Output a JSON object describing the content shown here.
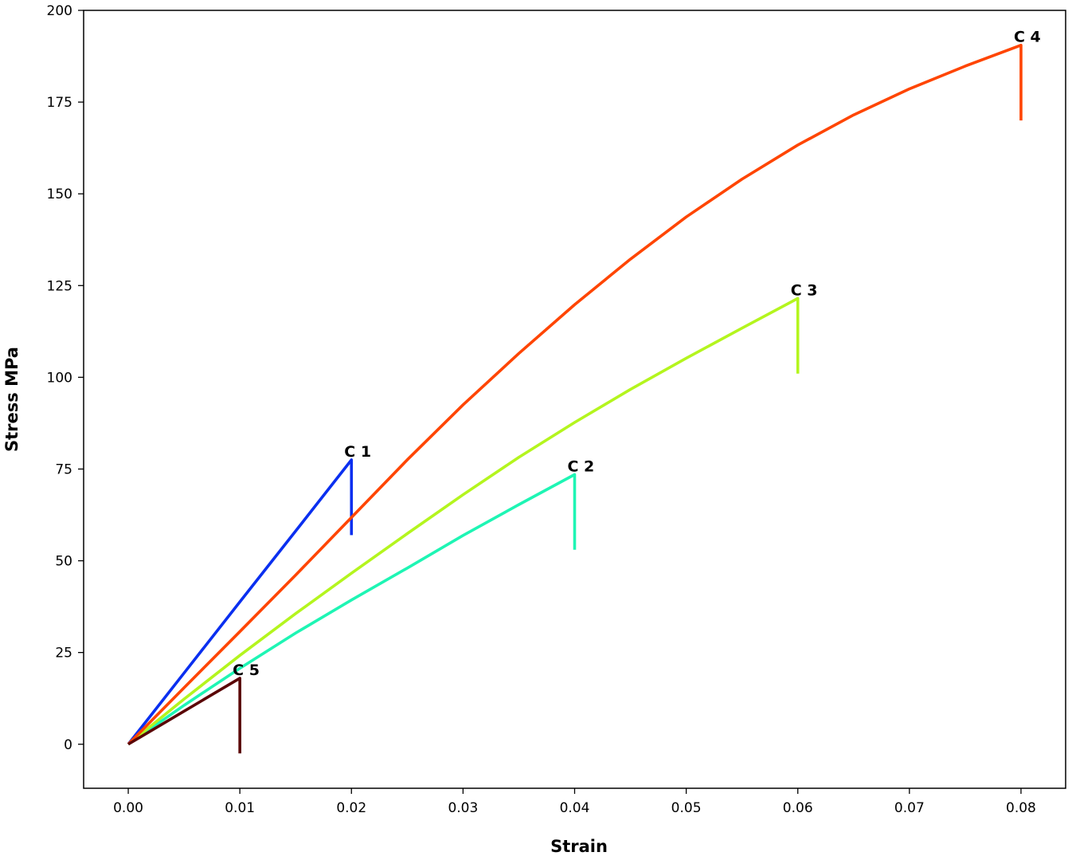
{
  "chart_data": {
    "type": "line",
    "title": "",
    "xlabel": "Strain",
    "ylabel": "Stress MPa",
    "xlim": [
      -0.004,
      0.084
    ],
    "ylim": [
      -12,
      200
    ],
    "xticks": [
      0.0,
      0.01,
      0.02,
      0.03,
      0.04,
      0.05,
      0.06,
      0.07,
      0.08
    ],
    "xtick_labels": [
      "0.00",
      "0.01",
      "0.02",
      "0.03",
      "0.04",
      "0.05",
      "0.06",
      "0.07",
      "0.08"
    ],
    "yticks": [
      0,
      25,
      50,
      75,
      100,
      125,
      150,
      175,
      200
    ],
    "ytick_labels": [
      "0",
      "25",
      "50",
      "75",
      "100",
      "125",
      "150",
      "175",
      "200"
    ],
    "grid": false,
    "legend": "none",
    "series": [
      {
        "label": "C 1",
        "color": "#0a2ff0",
        "points": [
          [
            0.0,
            0
          ],
          [
            0.005,
            19.4
          ],
          [
            0.01,
            38.8
          ],
          [
            0.015,
            58.1
          ],
          [
            0.02,
            77.5
          ],
          [
            0.02,
            57
          ]
        ]
      },
      {
        "label": "C 2",
        "color": "#1ef5b4",
        "points": [
          [
            0.0,
            0
          ],
          [
            0.005,
            10.6
          ],
          [
            0.01,
            20.7
          ],
          [
            0.015,
            30.3
          ],
          [
            0.02,
            39.3
          ],
          [
            0.025,
            48.0
          ],
          [
            0.03,
            56.9
          ],
          [
            0.035,
            65.3
          ],
          [
            0.04,
            73.5
          ],
          [
            0.04,
            53
          ]
        ]
      },
      {
        "label": "C 3",
        "color": "#b4f51e",
        "points": [
          [
            0.0,
            0
          ],
          [
            0.005,
            12.3
          ],
          [
            0.01,
            24.2
          ],
          [
            0.015,
            35.6
          ],
          [
            0.02,
            46.6
          ],
          [
            0.025,
            57.4
          ],
          [
            0.03,
            68.0
          ],
          [
            0.035,
            78.2
          ],
          [
            0.04,
            87.7
          ],
          [
            0.045,
            96.7
          ],
          [
            0.05,
            105.2
          ],
          [
            0.055,
            113.4
          ],
          [
            0.06,
            121.5
          ],
          [
            0.06,
            101
          ]
        ]
      },
      {
        "label": "C 4",
        "color": "#ff4500",
        "points": [
          [
            0.0,
            0
          ],
          [
            0.005,
            15.4
          ],
          [
            0.01,
            30.7
          ],
          [
            0.015,
            46.1
          ],
          [
            0.02,
            61.8
          ],
          [
            0.025,
            77.5
          ],
          [
            0.03,
            92.5
          ],
          [
            0.035,
            106.5
          ],
          [
            0.04,
            119.8
          ],
          [
            0.045,
            132.2
          ],
          [
            0.05,
            143.7
          ],
          [
            0.055,
            154.0
          ],
          [
            0.06,
            163.3
          ],
          [
            0.065,
            171.5
          ],
          [
            0.07,
            178.6
          ],
          [
            0.075,
            184.8
          ],
          [
            0.08,
            190.5
          ],
          [
            0.08,
            170
          ]
        ]
      },
      {
        "label": "C 5",
        "color": "#5a0505",
        "points": [
          [
            0.0,
            0
          ],
          [
            0.0025,
            4.5
          ],
          [
            0.005,
            9.0
          ],
          [
            0.0075,
            13.5
          ],
          [
            0.01,
            18.0
          ],
          [
            0.01,
            -2.5
          ]
        ]
      }
    ]
  }
}
